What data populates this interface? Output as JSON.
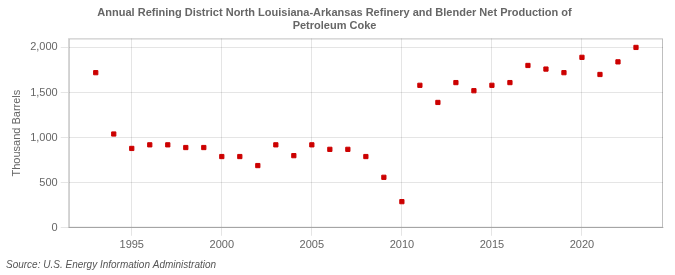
{
  "chart_data": {
    "type": "scatter",
    "title": [
      "Annual Refining District North Louisiana-Arkansas Refinery and Blender Net Production of",
      "Petroleum Coke"
    ],
    "ylabel": "Thousand Barrels",
    "source": "Source: U.S. Energy Information Administration",
    "x": [
      1993,
      1994,
      1995,
      1996,
      1997,
      1998,
      1999,
      2000,
      2001,
      2002,
      2003,
      2004,
      2005,
      2006,
      2007,
      2008,
      2009,
      2010,
      2011,
      2012,
      2013,
      2014,
      2015,
      2016,
      2017,
      2018,
      2019,
      2020,
      2021,
      2022,
      2023
    ],
    "values": [
      1720,
      1040,
      880,
      920,
      920,
      890,
      890,
      790,
      790,
      690,
      920,
      800,
      920,
      870,
      870,
      790,
      560,
      290,
      1580,
      1390,
      1610,
      1520,
      1580,
      1610,
      1800,
      1760,
      1720,
      1890,
      1700,
      1840,
      2000
    ],
    "color": "#cc0000",
    "marker": "square",
    "xlim": [
      1991.5,
      2024.5
    ],
    "xticks": [
      1995,
      2000,
      2005,
      2010,
      2015,
      2020
    ],
    "ylim": [
      0,
      2100
    ],
    "yticks": [
      0,
      500,
      {
        "value": 1000,
        "label": "1,000"
      },
      {
        "value": 1500,
        "label": "1,500"
      },
      {
        "value": 2000,
        "label": "2,000"
      }
    ],
    "grid": true
  }
}
